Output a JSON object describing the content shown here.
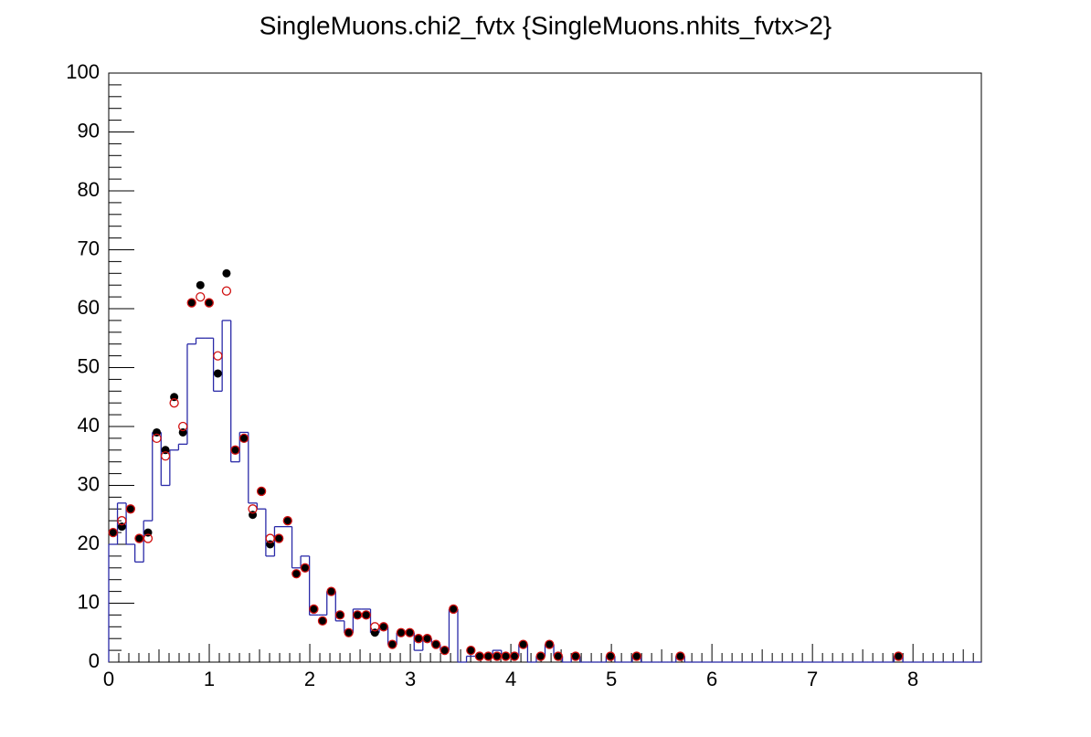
{
  "chart_data": {
    "type": "histogram",
    "title": "SingleMuons.chi2_fvtx {SingleMuons.nhits_fvtx>2}",
    "bins": [
      0,
      0.0868,
      0.1736,
      0.2604,
      0.3472,
      0.434,
      0.5208,
      0.6076,
      0.6944,
      0.7812,
      0.868,
      0.9548,
      1.0416,
      1.1284,
      1.2152,
      1.302,
      1.3888,
      1.4756,
      1.5624,
      1.6492,
      1.736,
      1.8228,
      1.9096,
      1.9964,
      2.0832,
      2.17,
      2.2568,
      2.3436,
      2.4304,
      2.5172,
      2.604,
      2.6908,
      2.7776,
      2.8644,
      2.9512,
      3.038,
      3.1248,
      3.2116,
      3.2984,
      3.3852,
      3.472,
      3.5588,
      3.6456,
      3.7324,
      3.8192,
      3.906,
      3.9928,
      4.0796,
      4.1664,
      4.2532,
      4.34,
      4.4268,
      4.5136,
      4.6004,
      4.6872,
      4.774,
      4.8608,
      4.9476,
      5.0344,
      5.1212,
      5.208,
      5.2948,
      5.3816,
      5.4684,
      5.5552,
      5.642,
      5.7288,
      5.8156,
      5.9024,
      5.9892,
      6.076,
      6.1628,
      6.2496,
      6.3364,
      6.4232,
      6.51,
      6.5968,
      6.6836,
      6.7704,
      6.8572,
      6.944,
      7.0308,
      7.1176,
      7.2044,
      7.2912,
      7.378,
      7.4648,
      7.5516,
      7.6384,
      7.7252,
      7.812,
      7.8988,
      7.9856,
      8.0724,
      8.1592,
      8.246,
      8.3328,
      8.4196,
      8.5064,
      8.5932,
      8.68
    ],
    "series": [
      {
        "style": "step",
        "color": "#2a2aa8",
        "values": [
          20,
          27,
          20,
          17,
          24,
          39,
          30,
          36,
          37,
          54,
          55,
          55,
          46,
          58,
          34,
          39,
          27,
          26,
          18,
          23,
          23,
          16,
          18,
          8,
          8,
          12,
          7,
          5,
          9,
          9,
          5,
          6,
          3,
          5,
          5,
          2,
          4,
          3,
          2,
          9,
          0,
          1,
          1,
          1,
          2,
          1,
          1,
          3,
          0,
          1,
          3,
          1,
          0,
          1,
          0,
          0,
          0,
          1,
          0,
          0,
          1,
          0,
          0,
          0,
          0,
          1,
          0,
          0,
          0,
          0,
          0,
          0,
          0,
          0,
          0,
          0,
          0,
          0,
          0,
          0,
          0,
          0,
          0,
          0,
          0,
          0,
          0,
          0,
          0,
          0,
          1,
          0,
          0,
          0,
          0,
          0,
          0,
          0,
          0,
          0
        ]
      },
      {
        "style": "filled-marker",
        "color": "#000000",
        "values": [
          22,
          23,
          26,
          21,
          22,
          39,
          36,
          45,
          39,
          61,
          64,
          61,
          49,
          66,
          36,
          38,
          25,
          29,
          20,
          21,
          24,
          15,
          16,
          9,
          7,
          12,
          8,
          5,
          8,
          8,
          5,
          6,
          3,
          5,
          5,
          4,
          4,
          3,
          2,
          9,
          null,
          2,
          1,
          1,
          1,
          1,
          1,
          3,
          null,
          1,
          3,
          1,
          null,
          1,
          null,
          null,
          null,
          1,
          null,
          null,
          1,
          null,
          null,
          null,
          null,
          1,
          null,
          null,
          null,
          null,
          null,
          null,
          null,
          null,
          null,
          null,
          null,
          null,
          null,
          null,
          null,
          null,
          null,
          null,
          null,
          null,
          null,
          null,
          null,
          null,
          1,
          null,
          null,
          null,
          null,
          null,
          null,
          null,
          null,
          null
        ]
      },
      {
        "style": "open-marker",
        "color": "#d01010",
        "values": [
          22,
          24,
          26,
          21,
          21,
          38,
          35,
          44,
          40,
          61,
          62,
          61,
          52,
          63,
          36,
          38,
          26,
          29,
          21,
          21,
          24,
          15,
          16,
          9,
          7,
          12,
          8,
          5,
          8,
          8,
          6,
          6,
          3,
          5,
          5,
          4,
          4,
          3,
          2,
          9,
          null,
          2,
          1,
          1,
          1,
          1,
          1,
          3,
          null,
          1,
          3,
          1,
          null,
          1,
          null,
          null,
          null,
          1,
          null,
          null,
          1,
          null,
          null,
          null,
          null,
          1,
          null,
          null,
          null,
          null,
          null,
          null,
          null,
          null,
          null,
          null,
          null,
          null,
          null,
          null,
          null,
          null,
          null,
          null,
          null,
          null,
          null,
          null,
          null,
          null,
          1,
          null,
          null,
          null,
          null,
          null,
          null,
          null,
          null,
          null
        ]
      }
    ],
    "xlim": [
      0,
      8.68
    ],
    "xticks": [
      0,
      1,
      2,
      3,
      4,
      5,
      6,
      7,
      8
    ],
    "ylim": [
      0,
      100
    ],
    "yticks": [
      0,
      10,
      20,
      30,
      40,
      50,
      60,
      70,
      80,
      90,
      100
    ],
    "x_minor_divisions": 10,
    "y_minor_divisions": 5
  }
}
